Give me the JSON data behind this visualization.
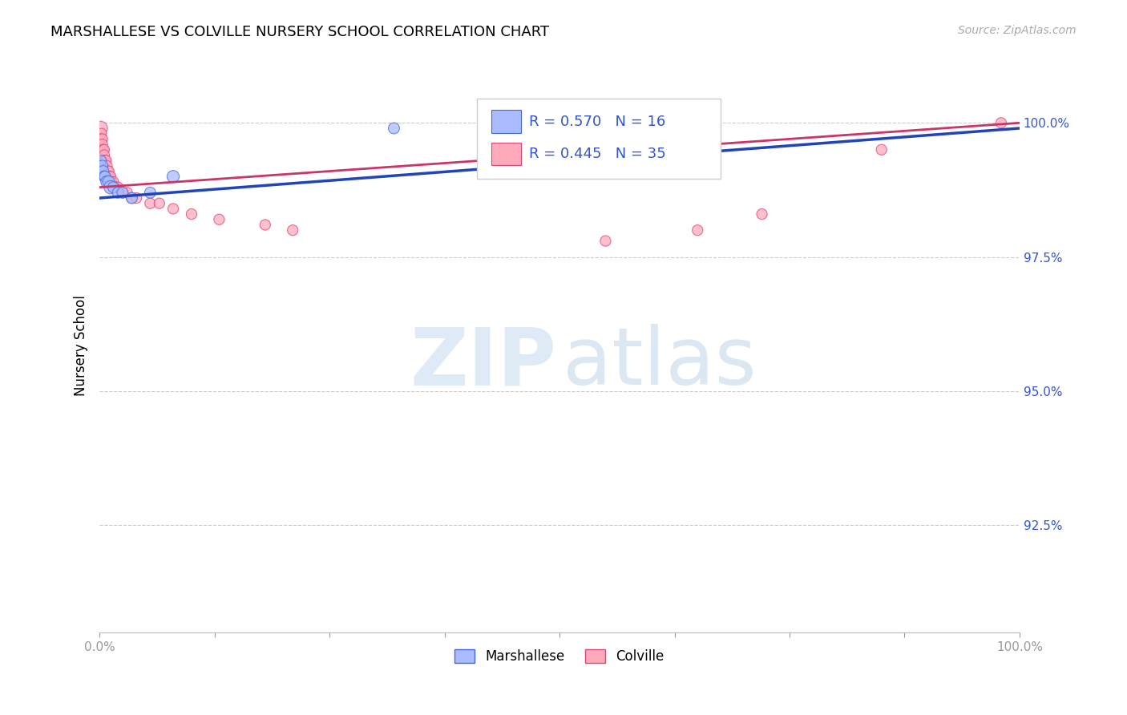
{
  "title": "MARSHALLESE VS COLVILLE NURSERY SCHOOL CORRELATION CHART",
  "source": "Source: ZipAtlas.com",
  "ylabel": "Nursery School",
  "ytick_labels": [
    "100.0%",
    "97.5%",
    "95.0%",
    "92.5%"
  ],
  "ytick_values": [
    1.0,
    0.975,
    0.95,
    0.925
  ],
  "xmin": 0.0,
  "xmax": 1.0,
  "ymin": 0.905,
  "ymax": 1.012,
  "legend_r1": "R = 0.570",
  "legend_n1": "N = 16",
  "legend_r2": "R = 0.445",
  "legend_n2": "N = 35",
  "blue_fill": "#aabbff",
  "blue_edge": "#4466dd",
  "pink_fill": "#ffaabb",
  "pink_edge": "#dd4477",
  "blue_line_color": "#2244bb",
  "pink_line_color": "#cc3366",
  "marshallese_x": [
    0.001,
    0.002,
    0.003,
    0.004,
    0.005,
    0.006,
    0.008,
    0.01,
    0.012,
    0.015,
    0.02,
    0.025,
    0.035,
    0.055,
    0.08,
    0.32
  ],
  "marshallese_y": [
    0.992,
    0.993,
    0.992,
    0.991,
    0.99,
    0.99,
    0.989,
    0.989,
    0.988,
    0.988,
    0.987,
    0.987,
    0.986,
    0.987,
    0.99,
    0.999
  ],
  "marshallese_s": [
    80,
    80,
    100,
    100,
    100,
    100,
    120,
    120,
    140,
    100,
    100,
    100,
    100,
    100,
    120,
    100
  ],
  "colville_x": [
    0.001,
    0.002,
    0.002,
    0.003,
    0.003,
    0.004,
    0.005,
    0.005,
    0.006,
    0.007,
    0.008,
    0.009,
    0.01,
    0.011,
    0.012,
    0.013,
    0.015,
    0.018,
    0.02,
    0.025,
    0.03,
    0.035,
    0.04,
    0.055,
    0.065,
    0.08,
    0.1,
    0.13,
    0.18,
    0.21,
    0.55,
    0.65,
    0.72,
    0.85,
    0.98
  ],
  "colville_y": [
    0.999,
    0.998,
    0.997,
    0.997,
    0.996,
    0.995,
    0.995,
    0.994,
    0.993,
    0.993,
    0.992,
    0.991,
    0.991,
    0.99,
    0.99,
    0.989,
    0.989,
    0.988,
    0.988,
    0.987,
    0.987,
    0.986,
    0.986,
    0.985,
    0.985,
    0.984,
    0.983,
    0.982,
    0.981,
    0.98,
    0.978,
    0.98,
    0.983,
    0.995,
    1.0
  ],
  "colville_s": [
    160,
    90,
    90,
    90,
    90,
    90,
    90,
    90,
    90,
    90,
    90,
    90,
    90,
    90,
    90,
    90,
    90,
    90,
    90,
    90,
    90,
    90,
    90,
    90,
    90,
    90,
    90,
    90,
    90,
    90,
    90,
    90,
    90,
    90,
    90
  ]
}
